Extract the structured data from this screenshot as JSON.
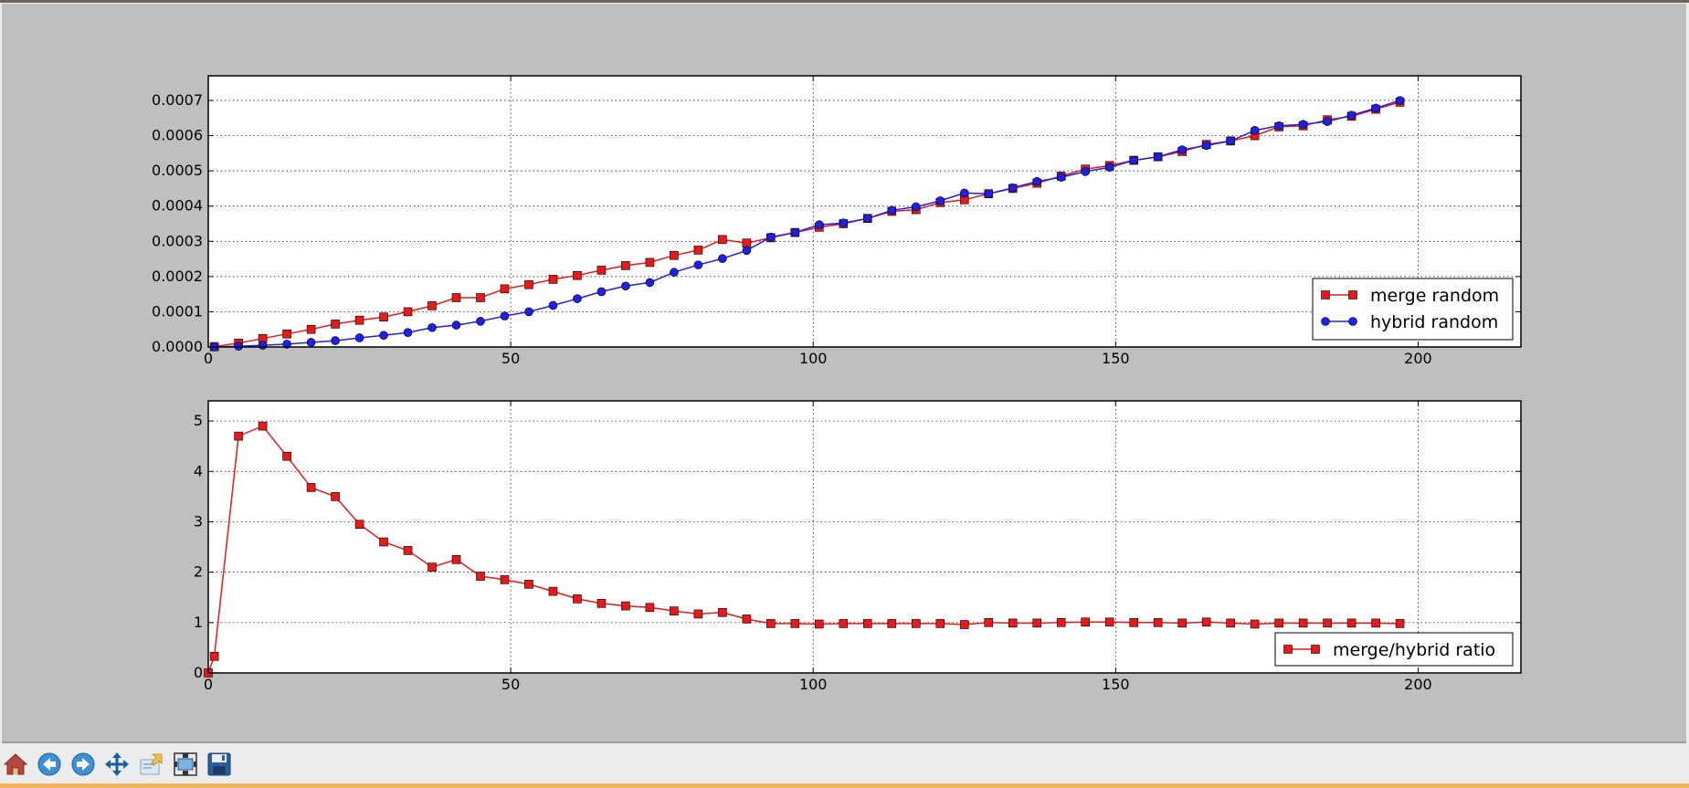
{
  "toolbar": {
    "buttons": [
      {
        "name": "home-button",
        "icon": "home-icon"
      },
      {
        "name": "back-button",
        "icon": "arrow-left-icon"
      },
      {
        "name": "forward-button",
        "icon": "arrow-right-icon"
      },
      {
        "name": "pan-button",
        "icon": "move-icon"
      },
      {
        "name": "zoom-button",
        "icon": "zoom-rect-icon"
      },
      {
        "name": "subplots-button",
        "icon": "configure-subplots-icon"
      },
      {
        "name": "save-button",
        "icon": "floppy-disk-icon"
      }
    ]
  },
  "colors": {
    "merge": "#e41a1c",
    "hybrid": "#1f1fe6",
    "figure_bg": "#bfbfbf",
    "axes_bg": "#ffffff"
  },
  "chart_data": [
    {
      "type": "line",
      "title": "",
      "xlabel": "",
      "ylabel": "",
      "xlim": [
        0,
        217
      ],
      "ylim": [
        0,
        0.00077
      ],
      "xticks": [
        0,
        50,
        100,
        150,
        200
      ],
      "xtick_labels": [
        "0",
        "50",
        "100",
        "150",
        "200"
      ],
      "yticks": [
        0,
        0.0001,
        0.0002,
        0.0003,
        0.0004,
        0.0005,
        0.0006,
        0.0007
      ],
      "ytick_labels": [
        "0.0000",
        "0.0001",
        "0.0002",
        "0.0003",
        "0.0004",
        "0.0005",
        "0.0006",
        "0.0007"
      ],
      "grid": true,
      "legend_position": "lower-right",
      "x": [
        1,
        5,
        9,
        13,
        17,
        21,
        25,
        29,
        33,
        37,
        41,
        45,
        49,
        53,
        57,
        61,
        65,
        69,
        73,
        77,
        81,
        85,
        89,
        93,
        97,
        101,
        105,
        109,
        113,
        117,
        121,
        125,
        129,
        133,
        137,
        141,
        145,
        149,
        153,
        157,
        161,
        165,
        169,
        173,
        177,
        181,
        185,
        189,
        193,
        197
      ],
      "series": [
        {
          "name": "merge random",
          "marker": "square",
          "color": "#e41a1c",
          "values": [
            1e-06,
            1.1e-05,
            2.4e-05,
            3.7e-05,
            5e-05,
            6.5e-05,
            7.6e-05,
            8.5e-05,
            0.0001,
            0.000117,
            0.00014,
            0.00014,
            0.000165,
            0.000177,
            0.000192,
            0.000203,
            0.000218,
            0.000231,
            0.00024,
            0.00026,
            0.000275,
            0.000305,
            0.000295,
            0.00031,
            0.000325,
            0.00034,
            0.00035,
            0.000365,
            0.000385,
            0.00039,
            0.00041,
            0.000418,
            0.000435,
            0.00045,
            0.000465,
            0.000485,
            0.000505,
            0.000515,
            0.00053,
            0.00054,
            0.000555,
            0.000575,
            0.000585,
            0.0006,
            0.000625,
            0.000628,
            0.000645,
            0.000655,
            0.000675,
            0.000695
          ]
        },
        {
          "name": "hybrid random",
          "marker": "circle",
          "color": "#1f1fe6",
          "values": [
            0.0,
            2e-06,
            5e-06,
            8e-06,
            1.3e-05,
            1.8e-05,
            2.6e-05,
            3.3e-05,
            4.1e-05,
            5.5e-05,
            6.2e-05,
            7.3e-05,
            8.8e-05,
            0.0001,
            0.000118,
            0.000137,
            0.000157,
            0.000173,
            0.000183,
            0.000212,
            0.000233,
            0.000251,
            0.000274,
            0.000312,
            0.000325,
            0.000347,
            0.000352,
            0.000365,
            0.000388,
            0.000398,
            0.000415,
            0.000437,
            0.000435,
            0.000452,
            0.00047,
            0.000482,
            0.000498,
            0.00051,
            0.00053,
            0.00054,
            0.00056,
            0.000572,
            0.000585,
            0.000615,
            0.000628,
            0.000632,
            0.00064,
            0.000658,
            0.000678,
            0.0007
          ]
        }
      ]
    },
    {
      "type": "line",
      "title": "",
      "xlabel": "",
      "ylabel": "",
      "xlim": [
        0,
        217
      ],
      "ylim": [
        0,
        5.4
      ],
      "xticks": [
        0,
        50,
        100,
        150,
        200
      ],
      "xtick_labels": [
        "0",
        "50",
        "100",
        "150",
        "200"
      ],
      "yticks": [
        0,
        1,
        2,
        3,
        4,
        5
      ],
      "ytick_labels": [
        "0",
        "1",
        "2",
        "3",
        "4",
        "5"
      ],
      "grid": true,
      "legend_position": "lower-right",
      "x": [
        0,
        1,
        5,
        9,
        13,
        17,
        21,
        25,
        29,
        33,
        37,
        41,
        45,
        49,
        53,
        57,
        61,
        65,
        69,
        73,
        77,
        81,
        85,
        89,
        93,
        97,
        101,
        105,
        109,
        113,
        117,
        121,
        125,
        129,
        133,
        137,
        141,
        145,
        149,
        153,
        157,
        161,
        165,
        169,
        173,
        177,
        181,
        185,
        189,
        193,
        197
      ],
      "series": [
        {
          "name": "merge/hybrid ratio",
          "marker": "square",
          "color": "#e41a1c",
          "values": [
            0.0,
            0.33,
            4.7,
            4.9,
            4.3,
            3.68,
            3.5,
            2.95,
            2.6,
            2.43,
            2.1,
            2.25,
            1.92,
            1.85,
            1.76,
            1.62,
            1.47,
            1.38,
            1.33,
            1.3,
            1.23,
            1.17,
            1.2,
            1.07,
            0.98,
            0.98,
            0.97,
            0.98,
            0.98,
            0.98,
            0.98,
            0.98,
            0.96,
            1.0,
            0.99,
            0.99,
            1.0,
            1.01,
            1.01,
            1.0,
            1.0,
            0.99,
            1.01,
            0.99,
            0.97,
            0.99,
            0.99,
            0.99,
            0.99,
            0.99,
            0.98
          ]
        }
      ]
    }
  ]
}
